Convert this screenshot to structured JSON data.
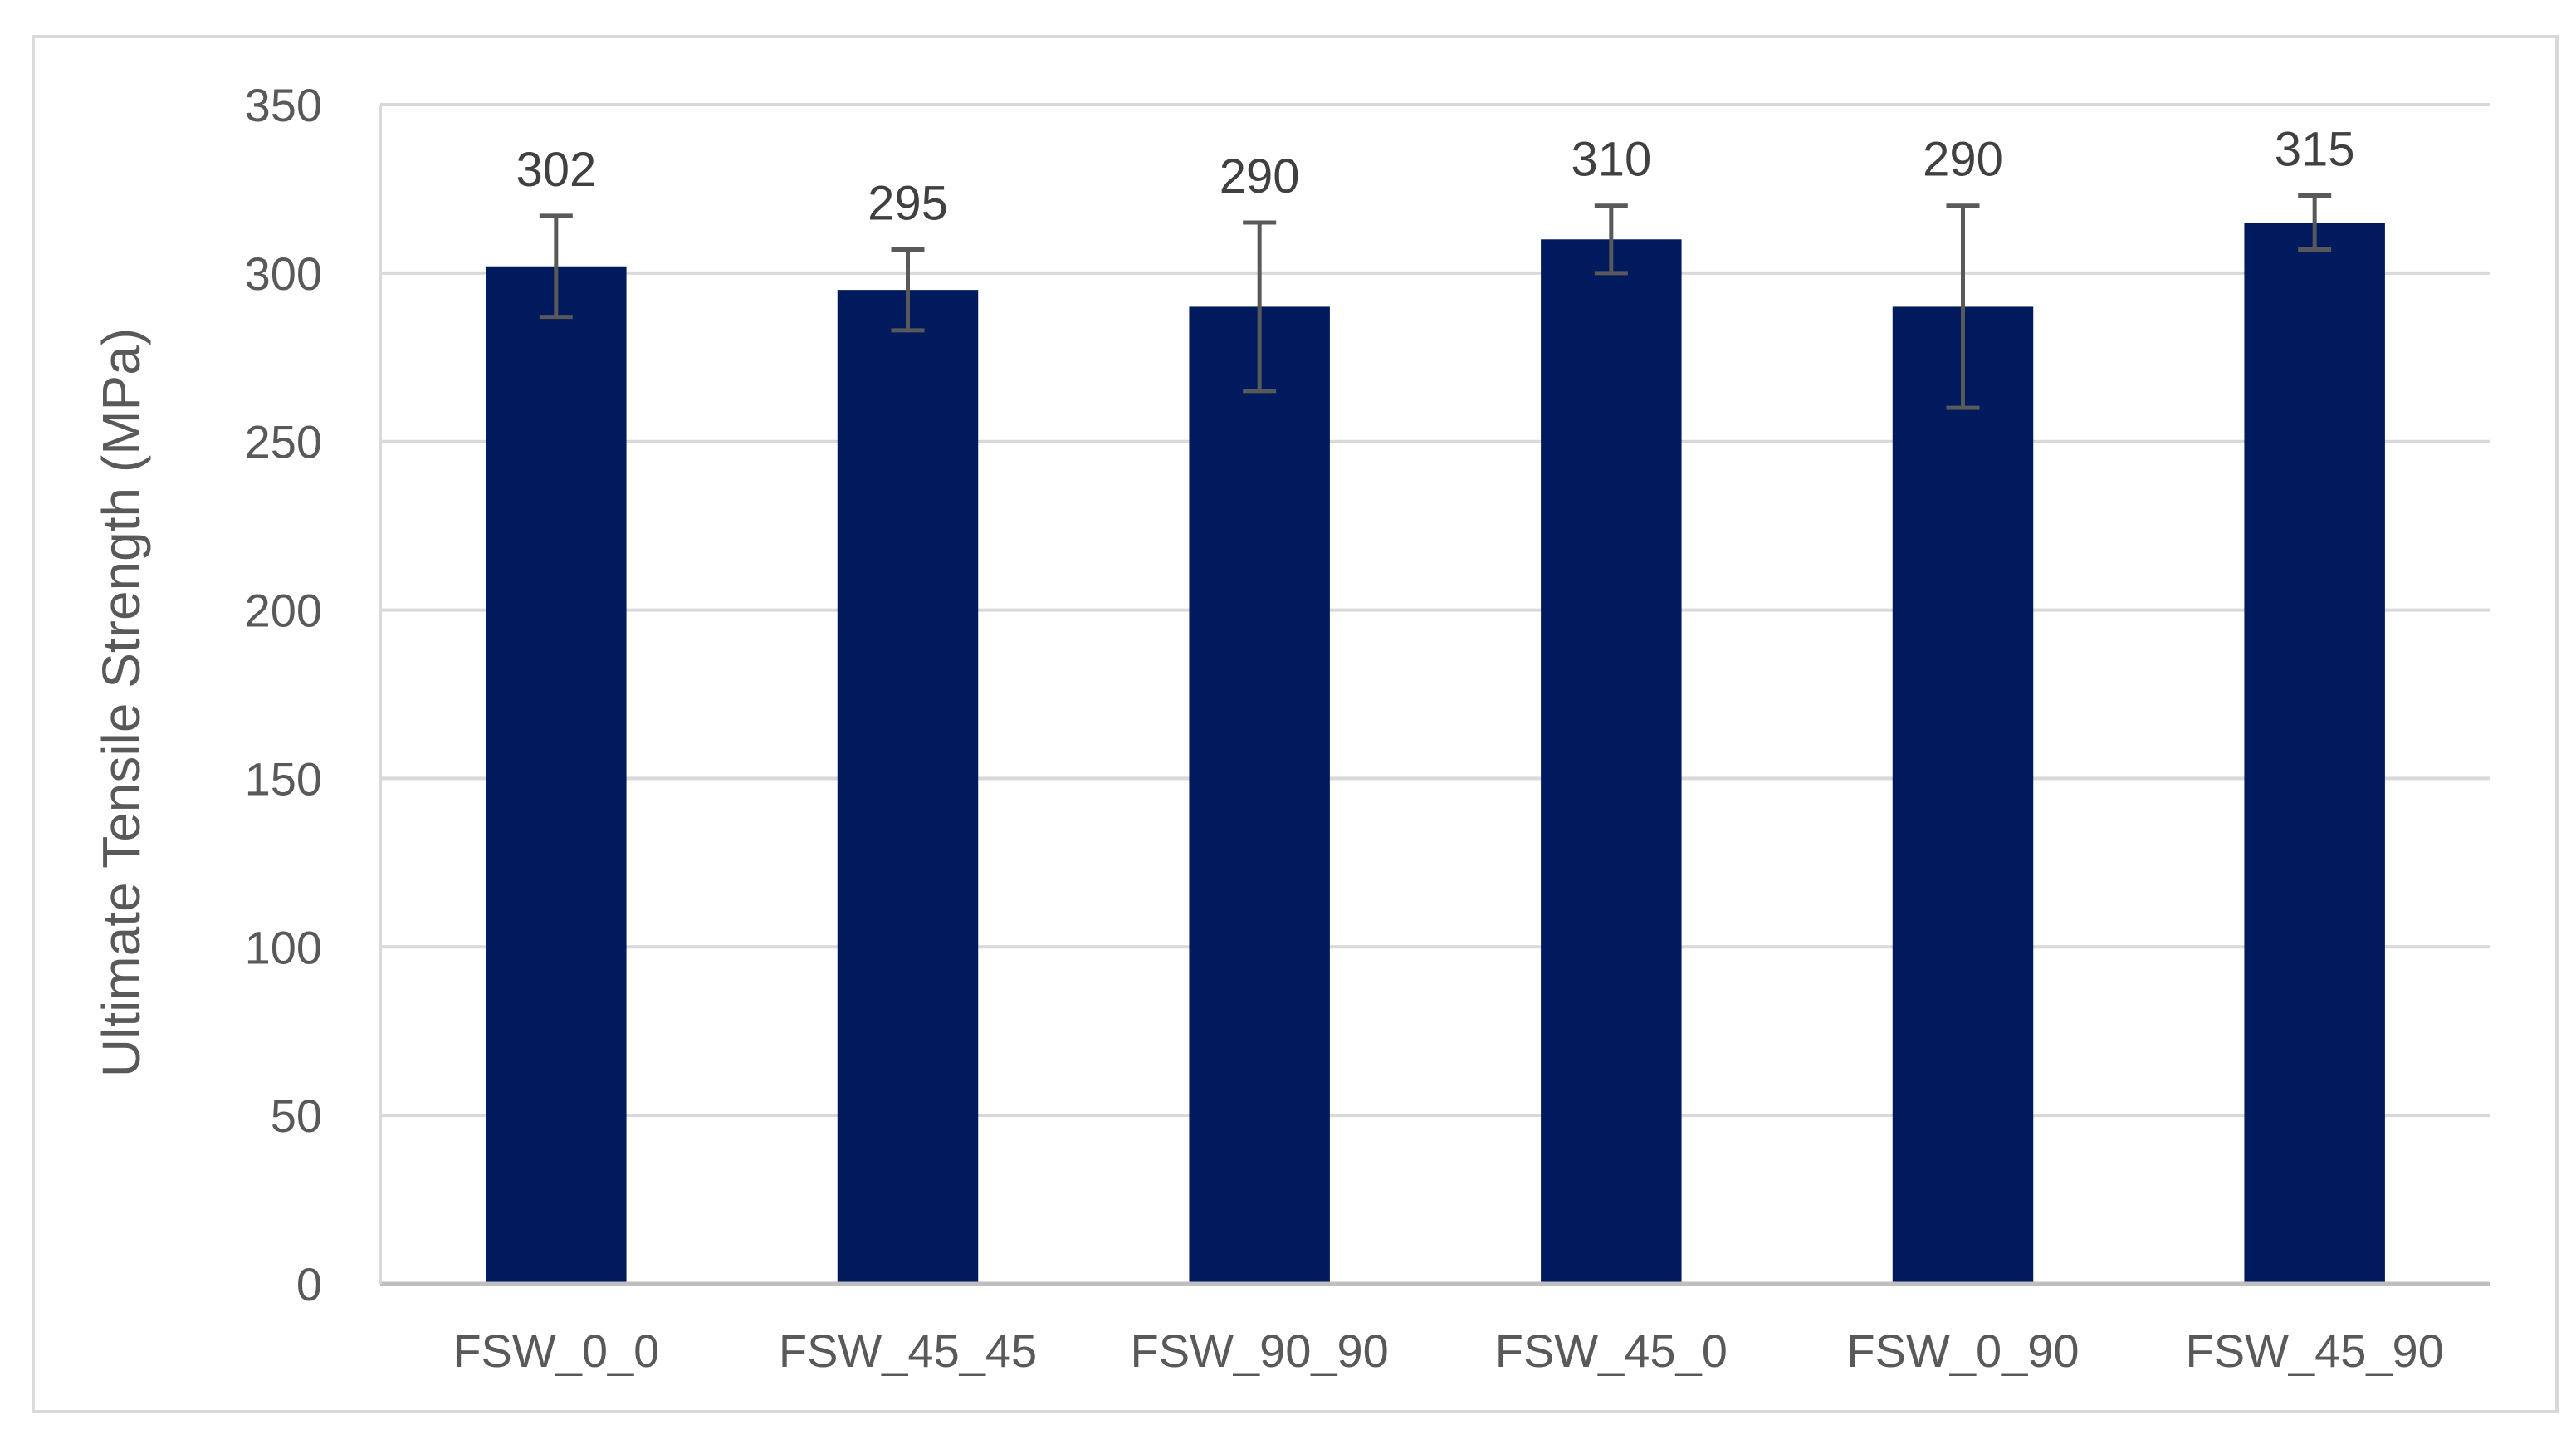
{
  "chart_data": {
    "type": "bar",
    "title": "",
    "xlabel": "",
    "ylabel": "Ultimate Tensile Strength (MPa)",
    "categories": [
      "FSW_0_0",
      "FSW_45_45",
      "FSW_90_90",
      "FSW_45_0",
      "FSW_0_90",
      "FSW_45_90"
    ],
    "values": [
      302,
      295,
      290,
      310,
      290,
      315
    ],
    "data_labels": [
      "302",
      "295",
      "290",
      "310",
      "290",
      "315"
    ],
    "error_bars": [
      15,
      12,
      25,
      10,
      30,
      8
    ],
    "ylim": [
      0,
      350
    ],
    "yticks": [
      0,
      50,
      100,
      150,
      200,
      250,
      300,
      350
    ],
    "grid": true,
    "legend": "none",
    "colors": {
      "bar": "#001a5e",
      "error_bar": "#595959",
      "grid": "#d9d9d9",
      "axis": "#bfbfbf",
      "frame": "#d9d9d9"
    }
  }
}
